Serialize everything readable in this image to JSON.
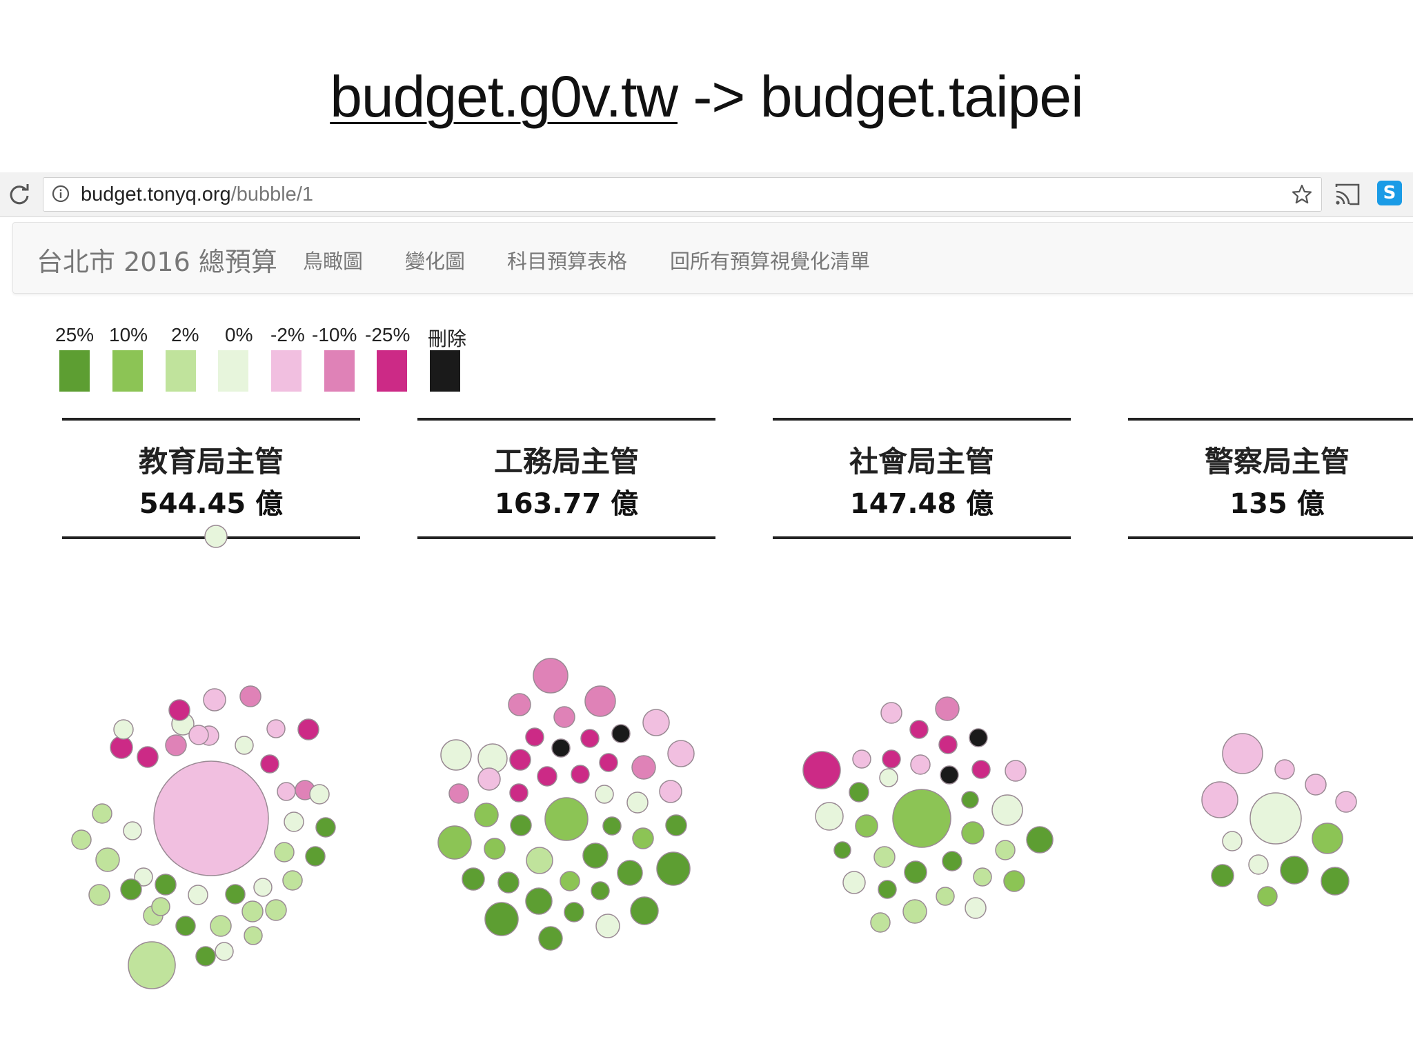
{
  "slide": {
    "title_link": "budget.g0v.tw",
    "title_rest": " -> budget.taipei"
  },
  "browser": {
    "url_host": "budget.tonyq.org",
    "url_path": "/bubble/1",
    "skype_icon_text": "S"
  },
  "navbar": {
    "brand": "台北市 2016 總預算",
    "links": [
      "鳥瞰圖",
      "變化圖",
      "科目預算表格",
      "回所有預算視覺化清單"
    ]
  },
  "legend": [
    {
      "label": "25%",
      "color": "#5d9e32"
    },
    {
      "label": "10%",
      "color": "#8cc455"
    },
    {
      "label": "2%",
      "color": "#c0e39c"
    },
    {
      "label": "0%",
      "color": "#e7f5dc"
    },
    {
      "label": "-2%",
      "color": "#f1bfe0"
    },
    {
      "label": "-10%",
      "color": "#df82b7"
    },
    {
      "label": "-25%",
      "color": "#cc2a86"
    },
    {
      "label": "刪除",
      "color": "#1a1a1a"
    }
  ],
  "departments": [
    {
      "name": "教育局主管",
      "amount": "544.45 億"
    },
    {
      "name": "工務局主管",
      "amount": "163.77 億"
    },
    {
      "name": "社會局主管",
      "amount": "147.48 億"
    },
    {
      "name": "警察局主管",
      "amount": "135 億"
    }
  ]
}
